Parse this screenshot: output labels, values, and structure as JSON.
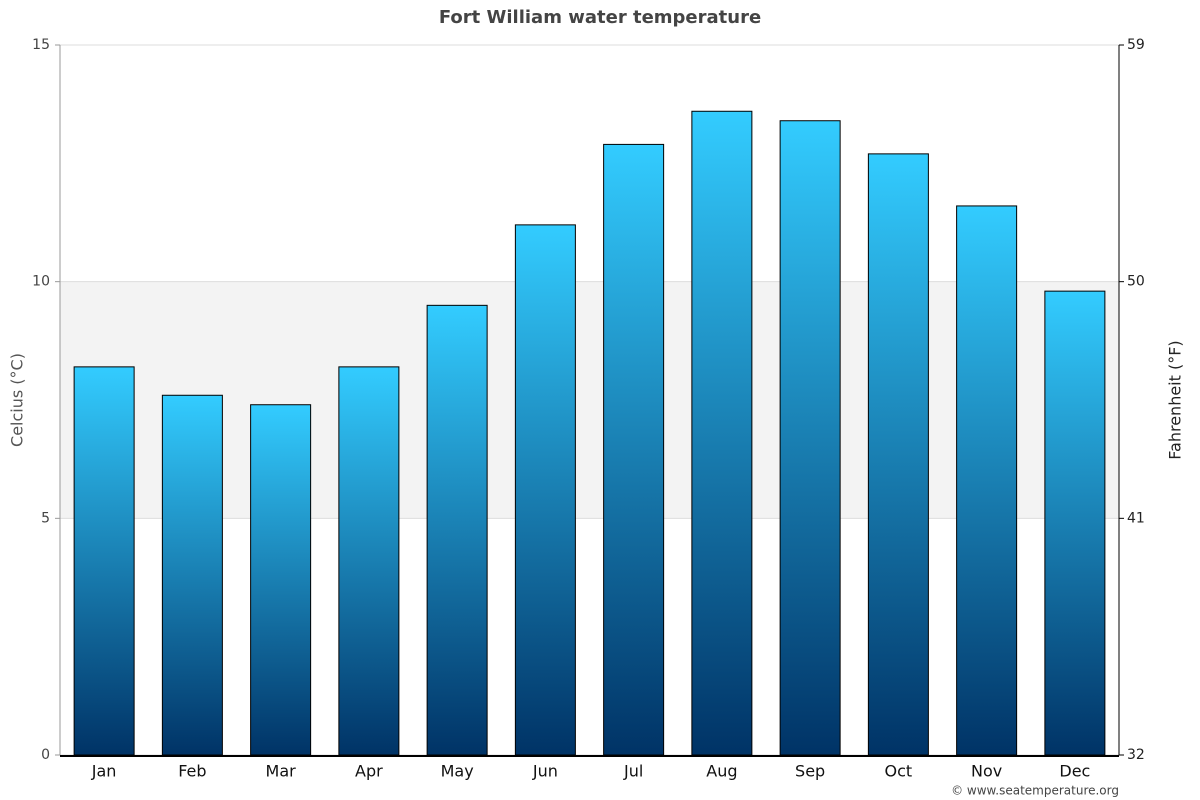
{
  "chart_data": {
    "type": "bar",
    "title": "Fort William water temperature",
    "y_label": "Celcius (°C)",
    "y2_label": "Fahrenheit (°F)",
    "credit": "© www.seatemperature.org",
    "categories": [
      "Jan",
      "Feb",
      "Mar",
      "Apr",
      "May",
      "Jun",
      "Jul",
      "Aug",
      "Sep",
      "Oct",
      "Nov",
      "Dec"
    ],
    "values": [
      8.2,
      7.6,
      7.4,
      8.2,
      9.5,
      11.2,
      12.9,
      13.6,
      13.4,
      12.7,
      11.6,
      9.8
    ],
    "gradient": [
      "#33ccff",
      "#003366"
    ],
    "ylim": [
      0,
      15
    ],
    "yticks": [
      0,
      5,
      10,
      15
    ],
    "y2lim": [
      32,
      59
    ],
    "y2ticks": [
      32,
      41,
      50,
      59
    ],
    "shaded_bands": [
      [
        5,
        10
      ]
    ],
    "band_color": "#f3f3f3",
    "grid": true
  }
}
